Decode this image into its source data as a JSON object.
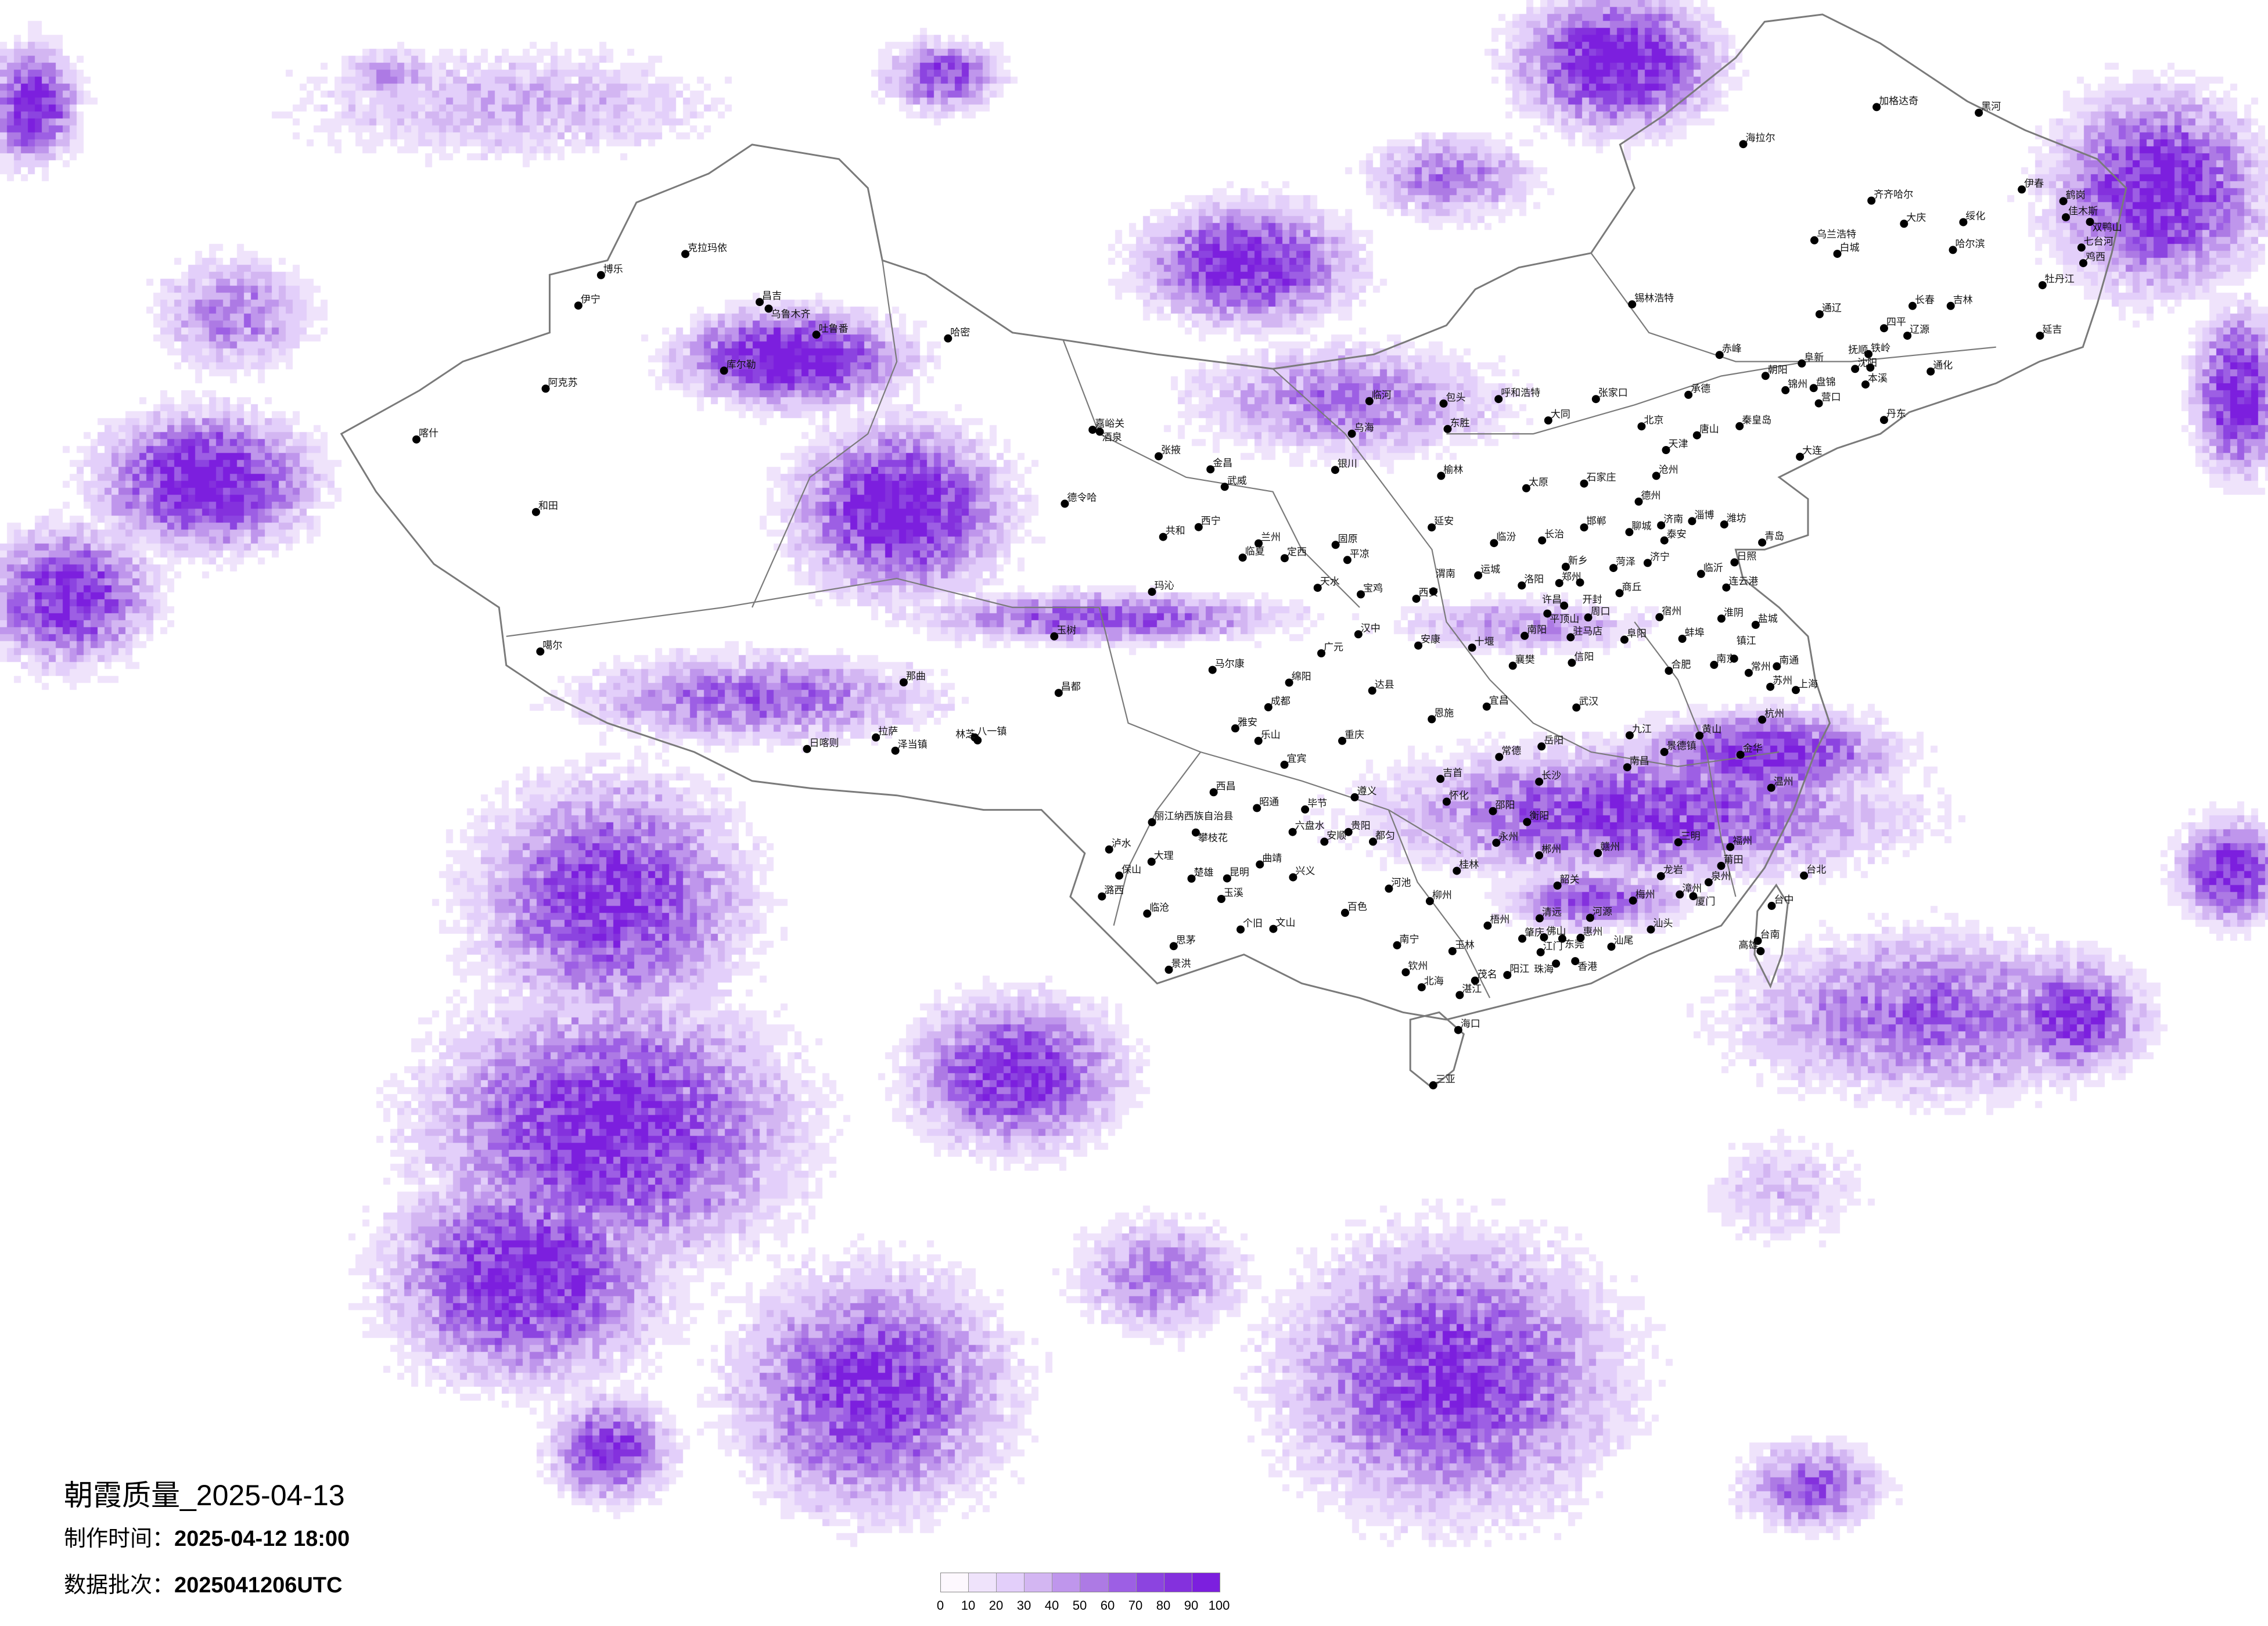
{
  "title": {
    "main": "朝霞质量_2025-04-13",
    "made_label": "制作时间：",
    "made_value": "2025-04-12 18:00",
    "batch_label": "数据批次：",
    "batch_value": "2025041206UTC"
  },
  "legend": {
    "labels": [
      "0",
      "10",
      "20",
      "30",
      "40",
      "50",
      "60",
      "70",
      "80",
      "90",
      "100"
    ],
    "colors": [
      "#fdf8fe",
      "#efe3fb",
      "#e3cffa",
      "#d3b6f2",
      "#bf96ec",
      "#ad7ae4",
      "#9d5fe4",
      "#8c44e0",
      "#8431dd",
      "#7c1fde"
    ]
  },
  "map": {
    "border_color": "#7a7a7a",
    "cities": [
      "克拉玛依",
      "博乐",
      "伊宁",
      "昌吉",
      "乌鲁木齐",
      "吐鲁番",
      "哈密",
      "库尔勒",
      "阿克苏",
      "和田",
      "喀什",
      "嘉峪关",
      "酒泉",
      "张掖",
      "德令哈",
      "共和",
      "玛沁",
      "玉树",
      "噶尔",
      "那曲",
      "昌都",
      "拉萨",
      "泽当镇",
      "八一镇",
      "林芝",
      "日喀则",
      "加格达奇",
      "黑河",
      "海拉尔",
      "齐齐哈尔",
      "大庆",
      "绥化",
      "伊春",
      "鹤岗",
      "佳木斯",
      "双鸭山",
      "乌兰浩特",
      "白城",
      "哈尔滨",
      "七台河",
      "鸡西",
      "牡丹江",
      "锡林浩特",
      "长春",
      "吉林",
      "通辽",
      "四平",
      "辽源",
      "延吉",
      "赤峰",
      "铁岭",
      "阜新",
      "沈阳",
      "抚顺",
      "朝阳",
      "通化",
      "承德",
      "锦州",
      "盘锦",
      "本溪",
      "营口",
      "丹东",
      "秦皇岛",
      "唐山",
      "大连",
      "北京",
      "天津",
      "临河",
      "包头",
      "呼和浩特",
      "张家口",
      "乌海",
      "东胜",
      "大同",
      "银川",
      "金昌",
      "武威",
      "榆林",
      "太原",
      "石家庄",
      "沧州",
      "德州",
      "西宁",
      "兰州",
      "延安",
      "邯郸",
      "济南",
      "淄博",
      "潍坊",
      "青岛",
      "长治",
      "临汾",
      "聊城",
      "泰安",
      "固原",
      "平凉",
      "定西",
      "临夏",
      "新乡",
      "菏泽",
      "济宁",
      "日照",
      "运城",
      "洛阳",
      "郑州",
      "开封",
      "临沂",
      "连云港",
      "天水",
      "宝鸡",
      "西安",
      "渭南",
      "商丘",
      "许昌",
      "平顶山",
      "周口",
      "宿州",
      "淮阴",
      "盐城",
      "汉中",
      "安康",
      "十堰",
      "南阳",
      "驻马店",
      "阜阳",
      "蚌埠",
      "广元",
      "马尔康",
      "襄樊",
      "信阳",
      "合肥",
      "南京",
      "镇江",
      "常州",
      "南通",
      "苏州",
      "绵阳",
      "达县",
      "成都",
      "宜昌",
      "武汉",
      "杭州",
      "上海",
      "雅安",
      "乐山",
      "重庆",
      "恩施",
      "岳阳",
      "九江",
      "黄山",
      "常德",
      "南昌",
      "宜宾",
      "景德镇",
      "金华",
      "长沙",
      "吉首",
      "遵义",
      "温州",
      "怀化",
      "邵阳",
      "西昌",
      "昭通",
      "毕节",
      "三明",
      "福州",
      "衡阳",
      "丽江纳西族自治县",
      "攀枝花",
      "六盘水",
      "贵阳",
      "安顺",
      "都匀",
      "永州",
      "郴州",
      "赣州",
      "泸水",
      "大理",
      "保山",
      "楚雄",
      "昆明",
      "曲靖",
      "兴义",
      "桂林",
      "龙岩",
      "莆田",
      "泉州",
      "台北",
      "潞西",
      "玉溪",
      "河池",
      "柳州",
      "韶关",
      "梅州",
      "漳州",
      "厦门",
      "台中",
      "百色",
      "临沧",
      "个旧",
      "文山",
      "梧州",
      "清远",
      "河源",
      "汕头",
      "思茅",
      "南宁",
      "玉林",
      "肇庆",
      "佛山",
      "东莞",
      "惠州",
      "汕尾",
      "台南",
      "高雄",
      "江门",
      "香港",
      "珠海",
      "景洪",
      "钦州",
      "北海",
      "茂名",
      "阳江",
      "湛江",
      "海口",
      "三亚"
    ]
  }
}
